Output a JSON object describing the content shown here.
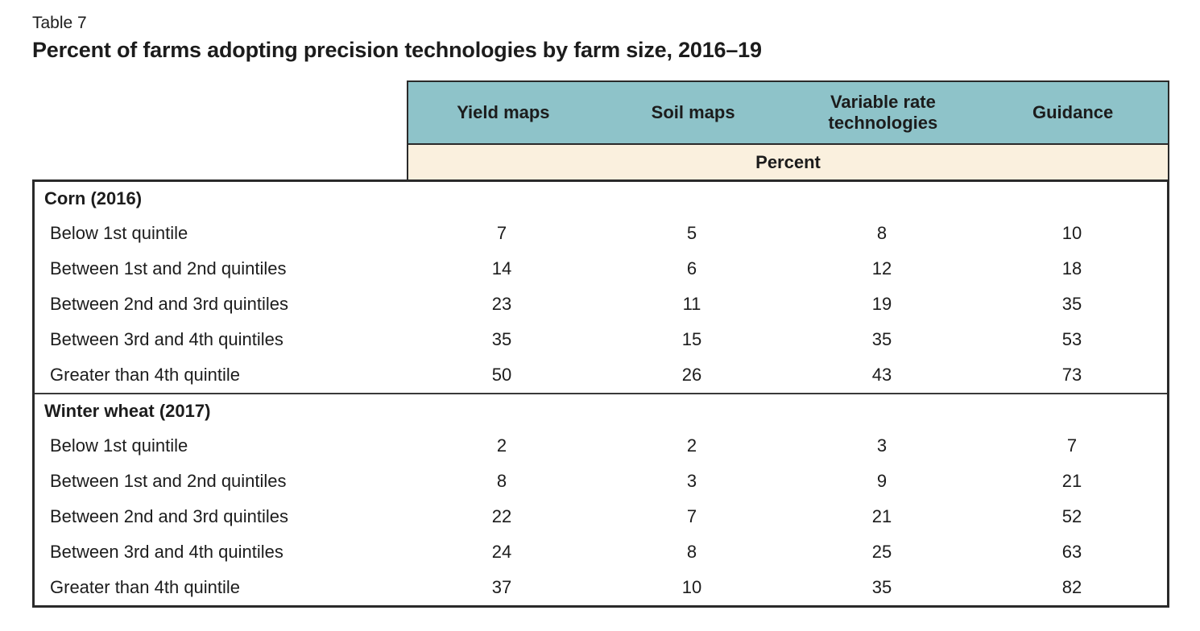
{
  "caption": {
    "table_label": "Table 7",
    "title": "Percent of farms adopting precision technologies by farm size, 2016–19"
  },
  "chart_data": {
    "type": "table",
    "title": "Percent of farms adopting precision technologies by farm size, 2016–19",
    "row_header_column": "",
    "columns": [
      "Yield maps",
      "Soil maps",
      "Variable rate technologies",
      "Guidance"
    ],
    "unit_row_label": "Percent",
    "sections": [
      {
        "header": "Corn (2016)",
        "rows": [
          {
            "label": "Below 1st quintile",
            "values": [
              7,
              5,
              8,
              10
            ]
          },
          {
            "label": "Between 1st and 2nd quintiles",
            "values": [
              14,
              6,
              12,
              18
            ]
          },
          {
            "label": "Between 2nd and 3rd quintiles",
            "values": [
              23,
              11,
              19,
              35
            ]
          },
          {
            "label": "Between 3rd and 4th quintiles",
            "values": [
              35,
              15,
              35,
              53
            ]
          },
          {
            "label": "Greater than 4th quintile",
            "values": [
              50,
              26,
              43,
              73
            ]
          }
        ]
      },
      {
        "header": "Winter wheat (2017)",
        "rows": [
          {
            "label": "Below 1st quintile",
            "values": [
              2,
              2,
              3,
              7
            ]
          },
          {
            "label": "Between 1st and 2nd quintiles",
            "values": [
              8,
              3,
              9,
              21
            ]
          },
          {
            "label": "Between 2nd and 3rd quintiles",
            "values": [
              22,
              7,
              21,
              52
            ]
          },
          {
            "label": "Between 3rd and 4th quintiles",
            "values": [
              24,
              8,
              25,
              63
            ]
          },
          {
            "label": "Greater than 4th quintile",
            "values": [
              37,
              10,
              35,
              82
            ]
          }
        ]
      }
    ]
  },
  "colors": {
    "header_teal": "#8ec3c9",
    "unit_cream": "#faf0de",
    "border_dark": "#2a2a2a",
    "divider_thin": "#3a3a3a",
    "text": "#1c1c1c"
  }
}
